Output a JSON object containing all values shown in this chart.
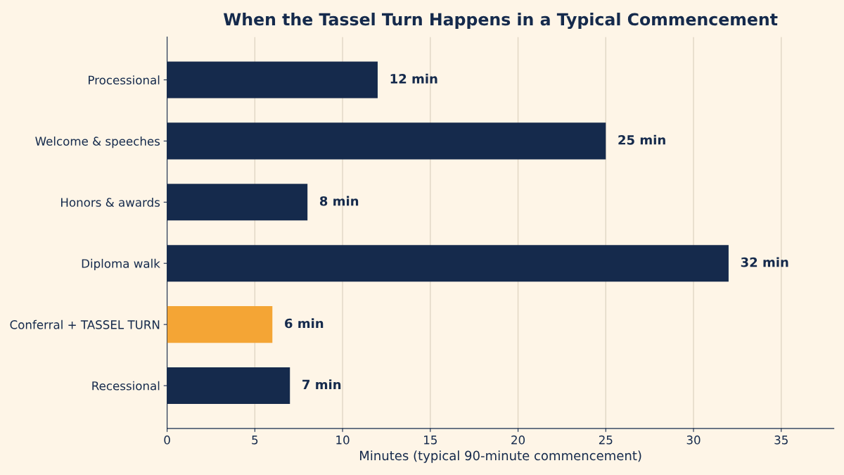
{
  "chart_data": {
    "type": "bar",
    "orientation": "horizontal",
    "title": "When the Tassel Turn Happens in a Typical Commencement",
    "xlabel": "Minutes (typical 90-minute commencement)",
    "categories": [
      "Processional",
      "Welcome & speeches",
      "Honors & awards",
      "Diploma walk",
      "Conferral + TASSEL TURN",
      "Recessional"
    ],
    "values": [
      12,
      25,
      8,
      32,
      6,
      7
    ],
    "colors": [
      "#152a4c",
      "#152a4c",
      "#152a4c",
      "#152a4c",
      "#f4a535",
      "#152a4c"
    ],
    "value_labels": [
      "12 min",
      "25 min",
      "8 min",
      "32 min",
      "6 min",
      "7 min"
    ],
    "xlim": [
      0,
      38
    ],
    "xticks": [
      0,
      5,
      10,
      15,
      20,
      25,
      30,
      35
    ],
    "grid": "x",
    "legend": false
  }
}
